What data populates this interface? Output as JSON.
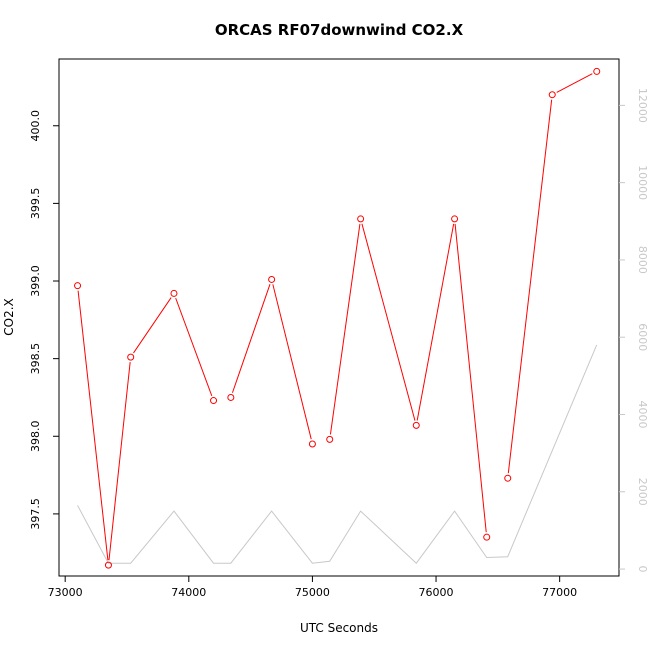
{
  "chart_data": {
    "type": "line",
    "title": "ORCAS RF07downwind CO2.X",
    "xlabel": "UTC Seconds",
    "ylabel": "CO2.X",
    "xlim": [
      72950,
      77480
    ],
    "ylim": [
      397.1,
      400.43
    ],
    "y2lim": [
      -180,
      13200
    ],
    "x_ticks": [
      73000,
      74000,
      75000,
      76000,
      77000
    ],
    "x_tick_labels": [
      "73000",
      "74000",
      "75000",
      "76000",
      "77000"
    ],
    "y_ticks": [
      397.5,
      398.0,
      398.5,
      399.0,
      399.5,
      400.0
    ],
    "y_tick_labels": [
      "397.5",
      "398.0",
      "398.5",
      "399.0",
      "399.5",
      "400.0"
    ],
    "y2_ticks": [
      0,
      2000,
      4000,
      6000,
      8000,
      10000,
      12000
    ],
    "y2_tick_labels": [
      "0",
      "2000",
      "4000",
      "6000",
      "8000",
      "10000",
      "12000"
    ],
    "grid": false,
    "series": [
      {
        "axis": "left",
        "color": "#ff0000",
        "style": "line+points",
        "segments": [
          [
            [
              73100,
              398.97
            ],
            [
              73350,
              397.17
            ],
            [
              73530,
              398.51
            ],
            [
              73880,
              398.92
            ],
            [
              74200,
              398.23
            ]
          ],
          [
            [
              74340,
              398.25
            ],
            [
              74670,
              399.01
            ],
            [
              75000,
              397.95
            ]
          ],
          [
            [
              75140,
              397.98
            ],
            [
              75390,
              399.4
            ],
            [
              75840,
              398.07
            ],
            [
              76150,
              399.4
            ],
            [
              76410,
              397.35
            ]
          ],
          [
            [
              76580,
              397.73
            ],
            [
              76940,
              400.2
            ],
            [
              77300,
              400.35
            ]
          ]
        ]
      },
      {
        "axis": "right",
        "color": "#c8c8c8",
        "style": "line",
        "points": [
          [
            73100,
            1650
          ],
          [
            73350,
            150
          ],
          [
            73530,
            150
          ],
          [
            73880,
            1500
          ],
          [
            74200,
            150
          ],
          [
            74340,
            150
          ],
          [
            74670,
            1500
          ],
          [
            75000,
            150
          ],
          [
            75140,
            200
          ],
          [
            75390,
            1500
          ],
          [
            75840,
            150
          ],
          [
            76150,
            1500
          ],
          [
            76410,
            300
          ],
          [
            76580,
            320
          ],
          [
            77300,
            5800
          ]
        ]
      }
    ]
  }
}
